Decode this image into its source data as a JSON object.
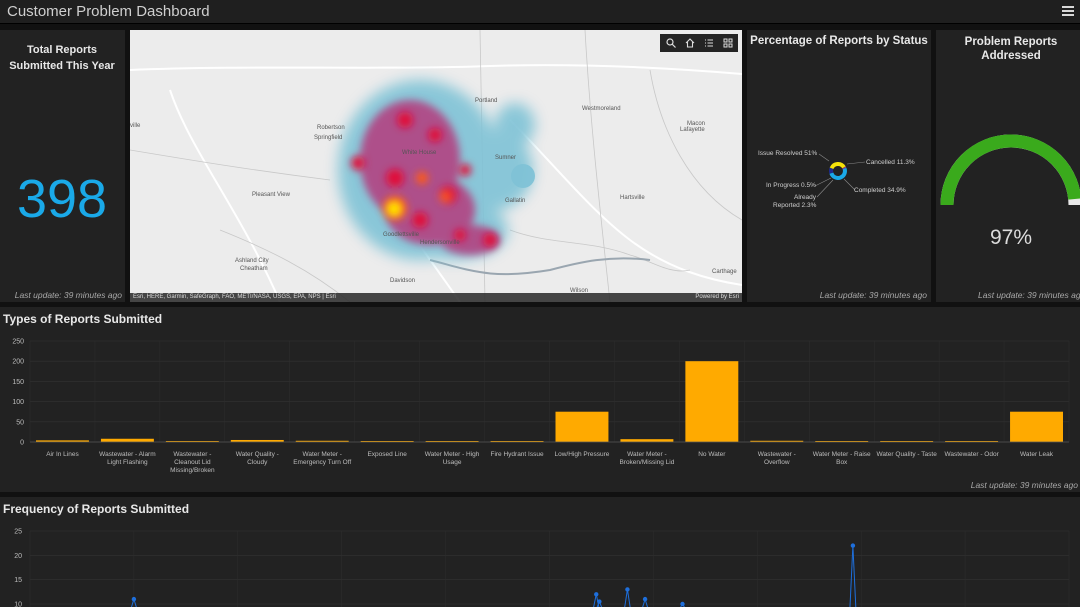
{
  "app": {
    "title": "Customer Problem Dashboard"
  },
  "total_reports": {
    "title": "Total Reports Submitted This Year",
    "value": "398",
    "last_update": "Last update: 39 minutes ago"
  },
  "map": {
    "attribution": "Esri, HERE, Garmin, SafeGraph, FAO, METI/NASA, USGS, EPA, NPS | Esri",
    "powered_by": "Powered by Esri",
    "places": [
      "Portland",
      "Westmoreland",
      "Lafayette",
      "Springfield",
      "White House",
      "Pleasant View",
      "Gallatin",
      "Hartsville",
      "Goodlettsville",
      "Hendersonville",
      "Ashland City",
      "Cheatham",
      "Carthage",
      "Robertson",
      "Sumner",
      "Macon",
      "Wilson",
      "Davidson",
      "ville"
    ],
    "toolbar": [
      "search-icon",
      "home-icon",
      "legend-icon",
      "basemap-icon"
    ]
  },
  "status": {
    "title": "Percentage of Reports by Status",
    "last_update": "Last update: 39 minutes ago",
    "labels": {
      "issue_resolved": "Issue Resolved 51%",
      "in_progress": "In Progress 0.5%",
      "already_reported_1": "Already",
      "already_reported_2": "Reported 2.3%",
      "cancelled": "Cancelled 11.3%",
      "completed": "Completed 34.9%"
    },
    "colors": {
      "issue_resolved": "#1aa9e8",
      "cancelled": "#1f2b8f",
      "completed": "#f5e20a",
      "in_progress": "#e06010",
      "already_reported": "#7a3fb0"
    }
  },
  "gauge": {
    "title": "Problem Reports Addressed",
    "value": "97%",
    "fraction": 0.97,
    "color": "#3aaa1c",
    "last_update": "Last update: 39 minutes ago"
  },
  "types": {
    "title": "Types of Reports Submitted",
    "last_update": "Last update: 39 minutes ago"
  },
  "frequency": {
    "title": "Frequency of Reports Submitted"
  },
  "chart_data": [
    {
      "type": "bar",
      "categories": [
        "Air In Lines",
        "Wastewater - Alarm Light Flashing",
        "Wastewater - Cleanout Lid Missing/Broken",
        "Water Quality - Cloudy",
        "Water Meter - Emergency Turn Off",
        "Exposed Line",
        "Water Meter - High Usage",
        "Fire Hydrant Issue",
        "Low/High Pressure",
        "Water Meter - Broken/Missing Lid",
        "No Water",
        "Wastewater - Overflow",
        "Water Meter - Raise Box",
        "Water Quality - Taste",
        "Wastewater - Odor",
        "Water Leak"
      ],
      "values": [
        4,
        8,
        2,
        5,
        3,
        2,
        2,
        2,
        75,
        7,
        200,
        3,
        2,
        2,
        2,
        75
      ],
      "ylim": [
        0,
        250
      ],
      "yticks": [
        0,
        50,
        100,
        150,
        200,
        250
      ],
      "color": "#ffaa00",
      "grid": true
    },
    {
      "type": "line",
      "yticks": [
        10,
        15,
        20,
        25
      ],
      "ylim": [
        10,
        25
      ],
      "x": [
        0.1,
        0.545,
        0.548,
        0.575,
        0.592,
        0.628,
        0.792
      ],
      "values": [
        11,
        12,
        10.5,
        13,
        11,
        10,
        22
      ],
      "color": "#1e6fdc",
      "grid": true
    }
  ]
}
